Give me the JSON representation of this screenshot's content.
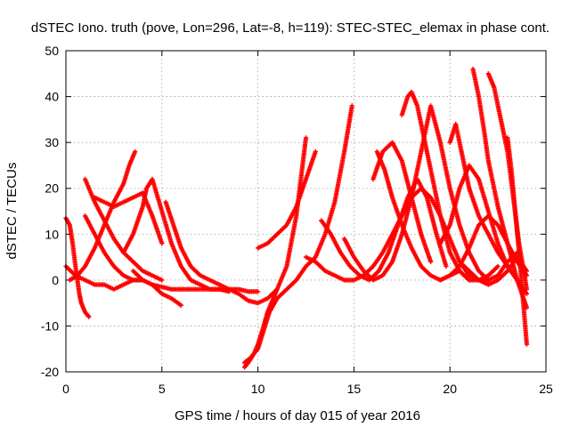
{
  "chart_data": {
    "type": "scatter",
    "title": "dSTEC Iono. truth (pove, Lon=296, Lat=-8, h=119): STEC-STEC_elemax in phase cont.",
    "xlabel": "GPS time / hours of day 015 of year 2016",
    "ylabel": "dSTEC  / TECUs",
    "xlim": [
      0,
      25
    ],
    "ylim": [
      -20,
      50
    ],
    "xticks": [
      0,
      5,
      10,
      15,
      20,
      25
    ],
    "yticks": [
      -20,
      -10,
      0,
      10,
      20,
      30,
      40,
      50
    ],
    "grid": true,
    "marker": "+",
    "color": "#ff0000",
    "series": [
      {
        "x": [
          0.0,
          0.2,
          0.35,
          0.5,
          0.6,
          0.7,
          0.8,
          1.0,
          1.2
        ],
        "y": [
          13.5,
          12,
          8,
          3,
          0,
          -3,
          -5,
          -7,
          -8
        ]
      },
      {
        "x": [
          0.0,
          0.5,
          1.0,
          1.5,
          2.0,
          2.5,
          3.0,
          3.5,
          4.0,
          4.5,
          5.0,
          5.5,
          6.0
        ],
        "y": [
          3,
          1,
          0,
          -1,
          -1,
          -2,
          -1,
          0,
          0,
          -1,
          -3,
          -4,
          -5.5
        ]
      },
      {
        "x": [
          0.2,
          0.6,
          1.0,
          1.5,
          2.0,
          2.5,
          3.0,
          3.3,
          3.6
        ],
        "y": [
          0,
          1,
          3,
          7,
          12,
          17,
          21,
          25,
          28
        ]
      },
      {
        "x": [
          1.0,
          1.5,
          2.0,
          2.5,
          3.0,
          3.5,
          4.0,
          4.5,
          5.0
        ],
        "y": [
          22,
          17,
          13,
          9,
          6,
          4,
          2,
          1,
          0
        ]
      },
      {
        "x": [
          1.5,
          2.0,
          2.5,
          3.0,
          3.5,
          4.0,
          4.5,
          5.0
        ],
        "y": [
          18,
          17,
          16,
          17,
          18,
          19,
          14,
          8
        ]
      },
      {
        "x": [
          1.0,
          1.5,
          2.0,
          2.5,
          3.0,
          3.5,
          4.0
        ],
        "y": [
          14,
          10,
          6,
          3,
          1,
          0,
          0
        ]
      },
      {
        "x": [
          3.0,
          3.5,
          4.0,
          4.2,
          4.5,
          5.0,
          5.5,
          6.0,
          6.5,
          7.0,
          7.5,
          8.0,
          8.5
        ],
        "y": [
          6,
          10,
          16,
          20,
          22,
          15,
          8,
          3,
          0,
          -1,
          -2,
          -2,
          -2.5
        ]
      },
      {
        "x": [
          5.2,
          5.6,
          6.0,
          6.5,
          7.0,
          7.5,
          8.0,
          8.5,
          9.0,
          9.5,
          10.0
        ],
        "y": [
          17,
          12,
          7,
          3,
          1,
          0,
          -1,
          -2,
          -2,
          -2.5,
          -2.5
        ]
      },
      {
        "x": [
          3.5,
          4.0,
          4.5,
          5.0,
          5.5,
          6.0,
          6.5,
          7.0,
          7.5,
          8.0,
          8.5,
          9.0,
          9.5,
          10.0,
          10.5,
          11.0,
          11.5,
          12.0,
          12.5
        ],
        "y": [
          2,
          0,
          -1,
          -1.5,
          -2,
          -2,
          -2,
          -2,
          -2,
          -2,
          -2,
          -3,
          -4.5,
          -5,
          -4,
          -2,
          3,
          14,
          31
        ]
      },
      {
        "x": [
          9.3,
          9.6,
          10.0,
          10.3,
          10.6,
          11.0,
          11.5,
          12.0,
          12.5,
          13.0,
          13.5,
          14.0,
          14.5,
          14.9
        ],
        "y": [
          -18,
          -17,
          -15,
          -11,
          -7,
          -4,
          -2,
          0,
          3,
          5,
          10,
          17,
          28,
          38
        ]
      },
      {
        "x": [
          9.3,
          9.5,
          9.8,
          10.0,
          10.3,
          10.5,
          10.8,
          11.0
        ],
        "y": [
          -19,
          -18,
          -16,
          -14,
          -10,
          -7,
          -4,
          -2
        ]
      },
      {
        "x": [
          10.0,
          10.5,
          11.0,
          11.5,
          12.0,
          12.5,
          13.0
        ],
        "y": [
          7,
          8,
          10,
          12,
          16,
          22,
          28
        ]
      },
      {
        "x": [
          12.5,
          13.0,
          13.5,
          14.0,
          14.5,
          15.0,
          15.5,
          16.0,
          16.5,
          17.0,
          17.5,
          18.0,
          18.5,
          19.0,
          19.5,
          20.0,
          20.5,
          21.0,
          21.5,
          22.0,
          22.5,
          23.0,
          23.5
        ],
        "y": [
          5,
          4,
          2,
          1,
          0,
          0,
          1,
          3,
          6,
          10,
          14,
          18,
          20,
          18,
          14,
          9,
          4,
          1,
          0,
          0,
          1,
          4,
          6
        ]
      },
      {
        "x": [
          13.3,
          13.8,
          14.3,
          14.8,
          15.3,
          15.8,
          16.3,
          16.8,
          17.3,
          17.8,
          18.3,
          18.8,
          19.3,
          19.8
        ],
        "y": [
          13,
          10,
          6,
          3,
          1,
          0,
          2,
          6,
          12,
          18,
          22,
          18,
          10,
          3
        ]
      },
      {
        "x": [
          14.5,
          15.0,
          15.5,
          16.0,
          16.5,
          17.0,
          17.5,
          18.0,
          18.5,
          19.0,
          19.5,
          20.0,
          20.5,
          21.0,
          21.5,
          22.0
        ],
        "y": [
          9,
          5,
          2,
          0,
          1,
          4,
          10,
          18,
          28,
          38,
          30,
          20,
          12,
          6,
          2,
          0
        ]
      },
      {
        "x": [
          16.2,
          16.6,
          17.0,
          17.5,
          18.0,
          18.5,
          19.0,
          19.5,
          20.0,
          20.5,
          21.0
        ],
        "y": [
          28,
          24,
          18,
          12,
          7,
          3,
          1,
          0,
          1,
          2,
          0
        ]
      },
      {
        "x": [
          17.5,
          17.8,
          18.0,
          18.3,
          18.6,
          19.0,
          19.5,
          20.0,
          20.5,
          21.0,
          21.5,
          22.0,
          22.5
        ],
        "y": [
          36,
          40,
          41,
          38,
          32,
          24,
          14,
          6,
          2,
          0,
          0,
          1,
          3
        ]
      },
      {
        "x": [
          16.0,
          16.5,
          17.0,
          17.5,
          18.0,
          18.5,
          19.0
        ],
        "y": [
          22,
          28,
          30,
          26,
          18,
          10,
          4
        ]
      },
      {
        "x": [
          19.5,
          20.0,
          20.5,
          21.0,
          21.5,
          22.0,
          22.5,
          23.0,
          23.5,
          24.0
        ],
        "y": [
          8,
          12,
          20,
          25,
          22,
          15,
          8,
          3,
          0,
          -3
        ]
      },
      {
        "x": [
          20.0,
          20.3,
          20.6,
          21.0,
          21.5,
          22.0,
          22.5,
          23.0,
          23.5,
          23.8
        ],
        "y": [
          30,
          34,
          28,
          20,
          14,
          10,
          6,
          3,
          0,
          -2
        ]
      },
      {
        "x": [
          21.2,
          21.5,
          21.8,
          22.0,
          22.5,
          23.0,
          23.5,
          24.0
        ],
        "y": [
          46,
          40,
          32,
          26,
          16,
          8,
          0,
          -6
        ]
      },
      {
        "x": [
          22.0,
          22.3,
          22.6,
          23.0,
          23.3,
          23.6,
          24.0
        ],
        "y": [
          45,
          42,
          36,
          28,
          18,
          8,
          -2
        ]
      },
      {
        "x": [
          23.0,
          23.2,
          23.4,
          23.6,
          23.8,
          24.0
        ],
        "y": [
          31,
          24,
          15,
          6,
          -4,
          -14
        ]
      },
      {
        "x": [
          19.5,
          20.0,
          20.5,
          21.0,
          21.5,
          22.0,
          22.5,
          23.0,
          23.5,
          24.0
        ],
        "y": [
          0,
          1,
          3,
          7,
          12,
          14,
          12,
          8,
          4,
          1
        ]
      },
      {
        "x": [
          20.5,
          21.0,
          21.5,
          22.0,
          22.5,
          23.0,
          23.5,
          24.0
        ],
        "y": [
          4,
          2,
          0,
          -1,
          0,
          2,
          5,
          2
        ]
      }
    ]
  }
}
